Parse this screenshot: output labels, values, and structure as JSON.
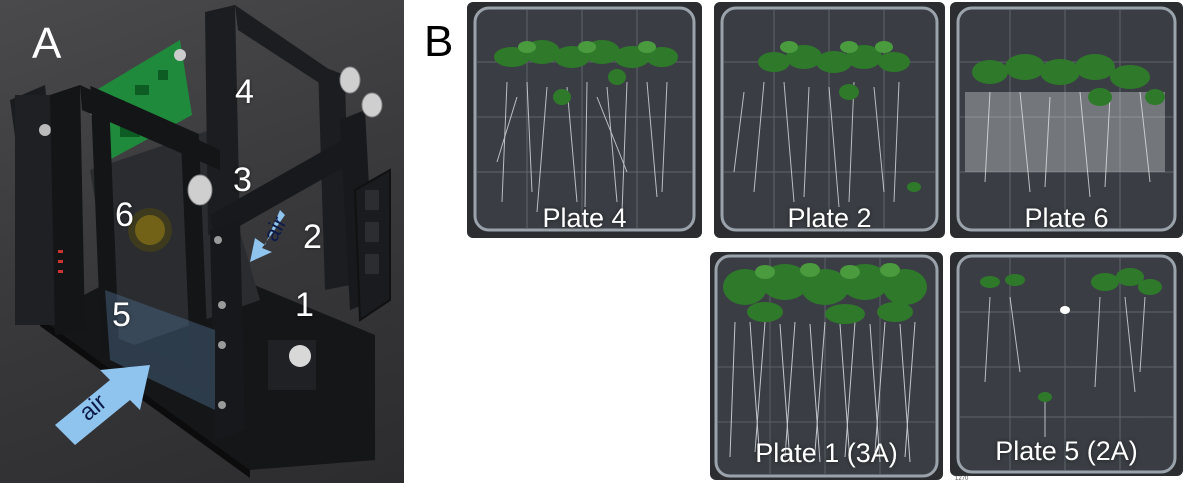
{
  "panel_a": {
    "letter": "A",
    "slot_numbers": [
      "1",
      "2",
      "3",
      "4",
      "5",
      "6"
    ],
    "airflow_labels": [
      "air",
      "air"
    ]
  },
  "panel_b": {
    "letter": "B",
    "plates": [
      {
        "label": "Plate 4"
      },
      {
        "label": "Plate 2"
      },
      {
        "label": "Plate 6"
      },
      {
        "label": "Plate 1 (3A)"
      },
      {
        "label": "Plate 5 (2A)"
      }
    ],
    "footnote": "1270"
  },
  "colors": {
    "air_arrow": "#8fc4ee",
    "plant_green": "#2f7a2a",
    "root_white": "#e6e9ec",
    "frame_black": "#1c1d20",
    "circuit_green": "#1f8a3c"
  }
}
